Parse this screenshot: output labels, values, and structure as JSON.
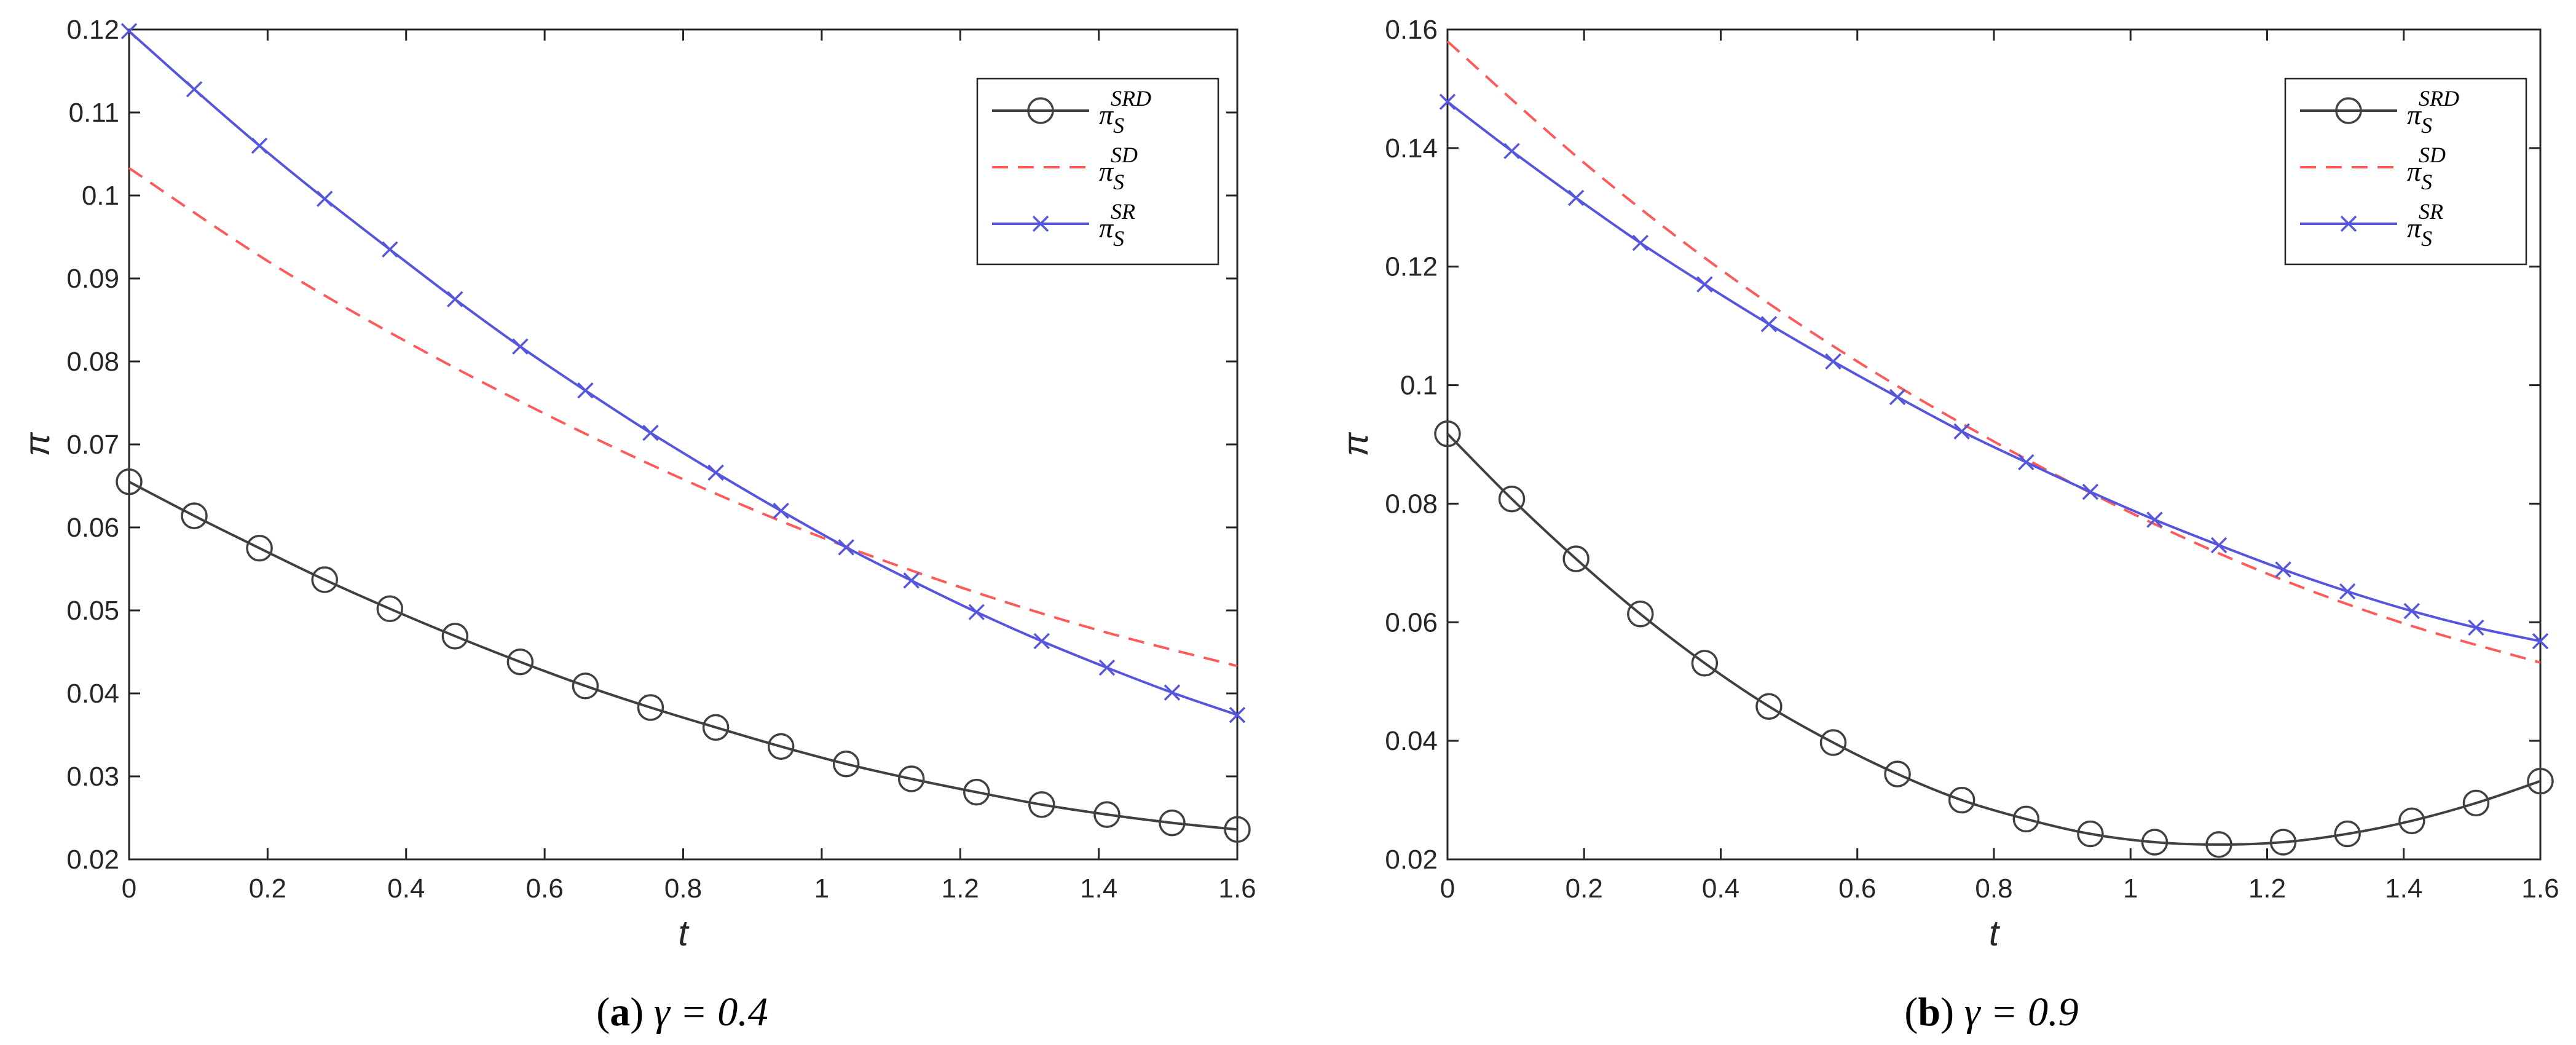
{
  "chart_data": [
    {
      "type": "line",
      "panel_letter": "a",
      "caption_value": "γ = 0.4",
      "xlabel": "t",
      "ylabel": "π",
      "xlim": [
        0,
        1.6
      ],
      "ylim": [
        0.02,
        0.12
      ],
      "x_ticks": [
        "0",
        "0.2",
        "0.4",
        "0.6",
        "0.8",
        "1",
        "1.2",
        "1.4",
        "1.6"
      ],
      "y_ticks": [
        "0.02",
        "0.03",
        "0.04",
        "0.05",
        "0.06",
        "0.07",
        "0.08",
        "0.09",
        "0.1",
        "0.11",
        "0.12"
      ],
      "x_tick_values": [
        0,
        0.2,
        0.4,
        0.6,
        0.8,
        1.0,
        1.2,
        1.4,
        1.6
      ],
      "y_tick_values": [
        0.02,
        0.03,
        0.04,
        0.05,
        0.06,
        0.07,
        0.08,
        0.09,
        0.1,
        0.11,
        0.12
      ],
      "legend_position": "top-right",
      "grid": false,
      "series": [
        {
          "name": "π_S^SRD",
          "label_base": "π",
          "label_sub": "S",
          "label_sup": "SRD",
          "color": "#404040",
          "style": "solid",
          "marker": "circle",
          "x": [
            0,
            0.0941,
            0.1882,
            0.2824,
            0.3765,
            0.4706,
            0.5647,
            0.6588,
            0.7529,
            0.8471,
            0.9412,
            1.0353,
            1.1294,
            1.2235,
            1.3176,
            1.4118,
            1.5059,
            1.6
          ],
          "y": [
            0.0655,
            0.0614,
            0.0575,
            0.0537,
            0.0502,
            0.0469,
            0.0438,
            0.0409,
            0.0383,
            0.0359,
            0.0336,
            0.0315,
            0.0297,
            0.0281,
            0.0266,
            0.0254,
            0.0244,
            0.0236
          ]
        },
        {
          "name": "π_S^SD",
          "label_base": "π",
          "label_sub": "S",
          "label_sup": "SD",
          "color": "#ff5a5a",
          "style": "dashed",
          "marker": "none",
          "x": [
            0,
            0.2,
            0.4,
            0.6,
            0.8,
            1.0,
            1.2,
            1.4,
            1.6
          ],
          "y": [
            0.1033,
            0.0921,
            0.0824,
            0.0737,
            0.0658,
            0.0588,
            0.0528,
            0.0476,
            0.0433
          ]
        },
        {
          "name": "π_S^SR",
          "label_base": "π",
          "label_sub": "S",
          "label_sup": "SR",
          "color": "#5555dd",
          "style": "solid",
          "marker": "x",
          "x": [
            0,
            0.0941,
            0.1882,
            0.2824,
            0.3765,
            0.4706,
            0.5647,
            0.6588,
            0.7529,
            0.8471,
            0.9412,
            1.0353,
            1.1294,
            1.2235,
            1.3176,
            1.4118,
            1.5059,
            1.6
          ],
          "y": [
            0.1198,
            0.1128,
            0.106,
            0.0996,
            0.0935,
            0.0875,
            0.0818,
            0.0765,
            0.0714,
            0.0666,
            0.062,
            0.0576,
            0.0536,
            0.0498,
            0.0463,
            0.0431,
            0.0401,
            0.0374
          ]
        }
      ]
    },
    {
      "type": "line",
      "panel_letter": "b",
      "caption_value": "γ = 0.9",
      "xlabel": "t",
      "ylabel": "π",
      "xlim": [
        0,
        1.6
      ],
      "ylim": [
        0.02,
        0.16
      ],
      "x_ticks": [
        "0",
        "0.2",
        "0.4",
        "0.6",
        "0.8",
        "1",
        "1.2",
        "1.4",
        "1.6"
      ],
      "y_ticks": [
        "0.02",
        "0.04",
        "0.06",
        "0.08",
        "0.1",
        "0.12",
        "0.14",
        "0.16"
      ],
      "x_tick_values": [
        0,
        0.2,
        0.4,
        0.6,
        0.8,
        1.0,
        1.2,
        1.4,
        1.6
      ],
      "y_tick_values": [
        0.02,
        0.04,
        0.06,
        0.08,
        0.1,
        0.12,
        0.14,
        0.16
      ],
      "legend_position": "top-right",
      "grid": false,
      "series": [
        {
          "name": "π_S^SRD",
          "label_base": "π",
          "label_sub": "S",
          "label_sup": "SRD",
          "color": "#404040",
          "style": "solid",
          "marker": "circle",
          "x": [
            0,
            0.0941,
            0.1882,
            0.2824,
            0.3765,
            0.4706,
            0.5647,
            0.6588,
            0.7529,
            0.8471,
            0.9412,
            1.0353,
            1.1294,
            1.2235,
            1.3176,
            1.4118,
            1.5059,
            1.6
          ],
          "y": [
            0.0918,
            0.0808,
            0.0707,
            0.0614,
            0.0531,
            0.0458,
            0.0397,
            0.0344,
            0.03,
            0.0268,
            0.0243,
            0.0229,
            0.0225,
            0.0229,
            0.0243,
            0.0265,
            0.0295,
            0.0332
          ]
        },
        {
          "name": "π_S^SD",
          "label_base": "π",
          "label_sub": "S",
          "label_sup": "SD",
          "color": "#ff5a5a",
          "style": "dashed",
          "marker": "none",
          "x": [
            0,
            0.2,
            0.4,
            0.6,
            0.8,
            1.0,
            1.2,
            1.4,
            1.6
          ],
          "y": [
            0.158,
            0.1375,
            0.1195,
            0.104,
            0.0905,
            0.0785,
            0.0682,
            0.0598,
            0.0532
          ]
        },
        {
          "name": "π_S^SR",
          "label_base": "π",
          "label_sub": "S",
          "label_sup": "SR",
          "color": "#5555dd",
          "style": "solid",
          "marker": "x",
          "x": [
            0,
            0.0941,
            0.1882,
            0.2824,
            0.3765,
            0.4706,
            0.5647,
            0.6588,
            0.7529,
            0.8471,
            0.9412,
            1.0353,
            1.1294,
            1.2235,
            1.3176,
            1.4118,
            1.5059,
            1.6
          ],
          "y": [
            0.1478,
            0.1395,
            0.1316,
            0.124,
            0.117,
            0.1103,
            0.104,
            0.098,
            0.0922,
            0.087,
            0.082,
            0.0773,
            0.073,
            0.0689,
            0.0652,
            0.0619,
            0.0591,
            0.0568
          ]
        }
      ]
    }
  ]
}
